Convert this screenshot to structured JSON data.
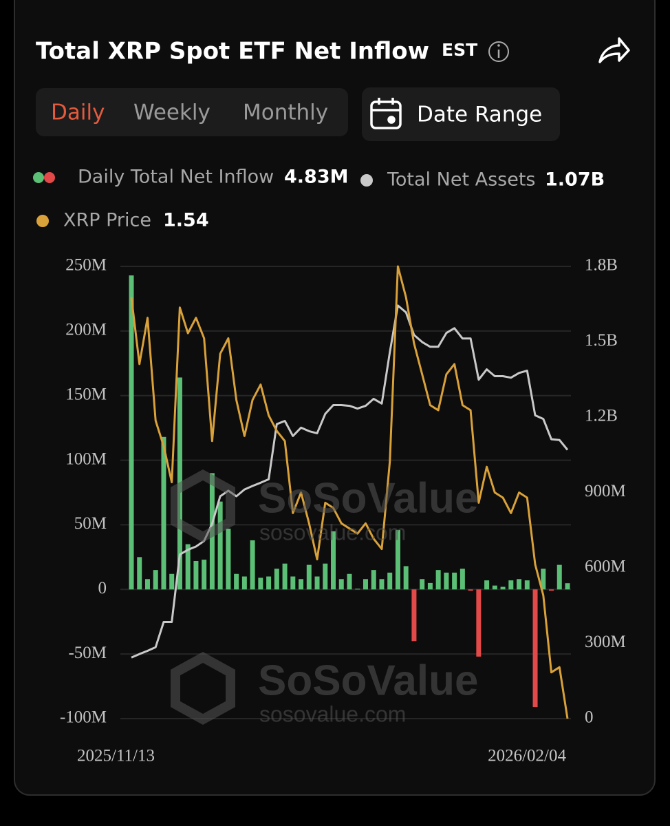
{
  "header": {
    "title": "Total XRP Spot ETF Net Inflow",
    "timezone": "EST"
  },
  "tabs": [
    "Daily",
    "Weekly",
    "Monthly"
  ],
  "date_range": "Date Range",
  "watermark": {
    "brand": "SoSoValue",
    "site": "sosovalue.com"
  },
  "chart_data": {
    "type": "bar",
    "categories": [
      "2025/11/13",
      null,
      null,
      null,
      null,
      null,
      null,
      null,
      null,
      null,
      null,
      null,
      null,
      null,
      null,
      null,
      null,
      null,
      null,
      null,
      null,
      null,
      null,
      null,
      null,
      null,
      null,
      null,
      null,
      null,
      null,
      null,
      null,
      null,
      null,
      null,
      null,
      null,
      null,
      null,
      null,
      null,
      null,
      null,
      null,
      null,
      null,
      null,
      null,
      null,
      null,
      null,
      null,
      null,
      "2026/02/04"
    ],
    "series": [
      {
        "name": "Daily Total Net Inflow",
        "latest_label": "4.83M",
        "color": "#5cbf76",
        "negative_color": "#e24a4a",
        "values": [
          243,
          25,
          8,
          15,
          118,
          12,
          164,
          35,
          22,
          23,
          90,
          68,
          47,
          12,
          10,
          38,
          9,
          10,
          16,
          20,
          10,
          8,
          19,
          10,
          20,
          45,
          8,
          12,
          0.5,
          8,
          15,
          8,
          13,
          46,
          18,
          -40,
          8,
          5,
          15,
          13,
          13,
          16,
          -1,
          -52,
          7,
          3,
          2,
          7,
          8,
          7,
          -91,
          16,
          -1,
          19,
          4.83
        ]
      },
      {
        "name": "Total Net Assets",
        "latest_label": "1.07B",
        "color": "#c9c9c9",
        "type": "line",
        "axis": "y2",
        "values": [
          243,
          257,
          270,
          284,
          385,
          385,
          653,
          672,
          685,
          707,
          776,
          885,
          907,
          885,
          912,
          926,
          939,
          953,
          1172,
          1185,
          1125,
          1158,
          1144,
          1136,
          1213,
          1248,
          1248,
          1245,
          1234,
          1245,
          1273,
          1254,
          1458,
          1644,
          1617,
          1527,
          1499,
          1480,
          1480,
          1535,
          1554,
          1513,
          1513,
          1349,
          1390,
          1363,
          1363,
          1357,
          1376,
          1385,
          1207,
          1193,
          1112,
          1109,
          1070
        ]
      },
      {
        "name": "XRP Price",
        "latest_label": "1.54",
        "color": "#d9a13a",
        "type": "line",
        "axis": "own",
        "values": [
          2.36,
          2.23,
          2.32,
          2.12,
          2.07,
          2.0,
          2.34,
          2.29,
          2.32,
          2.28,
          2.08,
          2.25,
          2.28,
          2.16,
          2.09,
          2.16,
          2.19,
          2.13,
          2.1,
          2.08,
          1.94,
          1.98,
          1.92,
          1.85,
          1.96,
          1.95,
          1.92,
          1.91,
          1.9,
          1.92,
          1.89,
          1.87,
          2.04,
          2.42,
          2.36,
          2.27,
          2.21,
          2.15,
          2.14,
          2.21,
          2.23,
          2.15,
          2.14,
          1.96,
          2.03,
          1.98,
          1.97,
          1.94,
          1.98,
          1.97,
          1.84,
          1.78,
          1.63,
          1.64,
          1.54
        ]
      }
    ],
    "ylim": [
      -100,
      250
    ],
    "yticks": [
      {
        "value": 250,
        "label": "250M"
      },
      {
        "value": 200,
        "label": "200M"
      },
      {
        "value": 150,
        "label": "150M"
      },
      {
        "value": 100,
        "label": "100M"
      },
      {
        "value": 50,
        "label": "50M"
      },
      0,
      {
        "value": -50,
        "label": "-50M"
      },
      {
        "value": -100,
        "label": "-100M"
      }
    ],
    "y2lim": [
      0,
      1800
    ],
    "y2ticks": [
      {
        "value": 1800,
        "label": "1.8B"
      },
      {
        "value": 1500,
        "label": "1.5B"
      },
      {
        "value": 1200,
        "label": "1.2B"
      },
      {
        "value": 900,
        "label": "900M"
      },
      {
        "value": 600,
        "label": "600M"
      },
      {
        "value": 300,
        "label": "300M"
      },
      0
    ],
    "grid": true
  }
}
